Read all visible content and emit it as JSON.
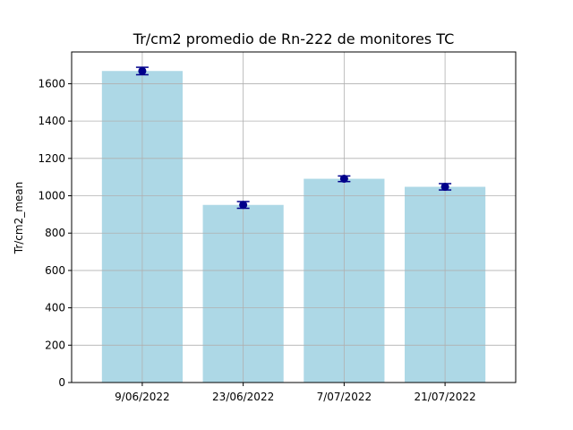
{
  "chart_data": {
    "type": "bar",
    "title": "Tr/cm2 promedio de Rn-222 de monitores TC",
    "xlabel": "",
    "ylabel": "Tr/cm2_mean",
    "categories": [
      "9/06/2022",
      "23/06/2022",
      "7/07/2022",
      "21/07/2022"
    ],
    "values": [
      1668,
      951,
      1091,
      1048
    ],
    "errors": [
      20,
      18,
      15,
      17
    ],
    "ylim": [
      0,
      1770
    ],
    "yticks": [
      0,
      200,
      400,
      600,
      800,
      1000,
      1200,
      1400,
      1600
    ],
    "grid": true,
    "colors": {
      "bar": "#add8e6",
      "marker": "#00008b",
      "grid": "#b0b0b0",
      "axis": "#000000"
    }
  }
}
